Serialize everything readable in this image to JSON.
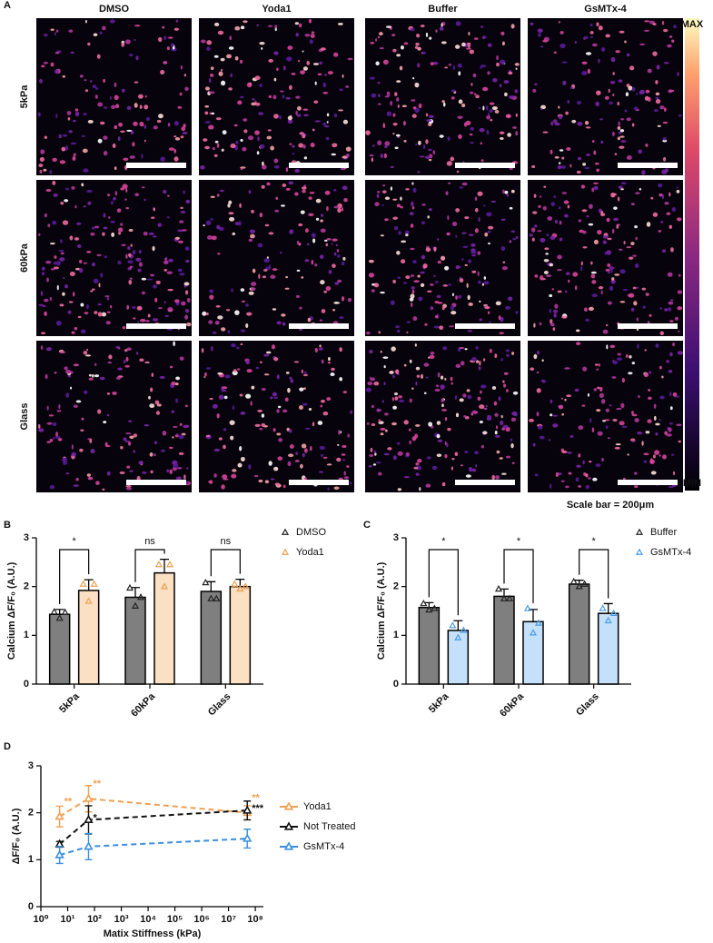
{
  "panel_labels": [
    "A",
    "B",
    "C",
    "D"
  ],
  "microscopy": {
    "columns": [
      "DMSO",
      "Yoda1",
      "Buffer",
      "GsMTx-4"
    ],
    "rows": [
      "5kPa",
      "60kPa",
      "Glass"
    ],
    "colorbar": {
      "max": "MAX",
      "min": "MIN"
    },
    "scale_bar": "Scale bar = 200μm"
  },
  "chart_data": [
    {
      "type": "bar",
      "ylabel": "Calcium ΔF/F₀ (A.U.)",
      "categories": [
        "5kPa",
        "60kPa",
        "Glass"
      ],
      "ylim": [
        0,
        3
      ],
      "yticks": [
        0,
        1,
        2,
        3
      ],
      "legend": "right",
      "significance": [
        "*",
        "ns",
        "ns"
      ],
      "series": [
        {
          "name": "DMSO",
          "color": "#7f7f7f",
          "marker_color": "#222222",
          "values": [
            1.43,
            1.78,
            1.9
          ],
          "errors": [
            0.1,
            0.2,
            0.2
          ],
          "points": [
            [
              1.48,
              1.35,
              1.47
            ],
            [
              1.97,
              1.6,
              1.78
            ],
            [
              2.08,
              1.75,
              1.75
            ]
          ]
        },
        {
          "name": "Yoda1",
          "color": "#fbe0c4",
          "marker_color": "#f0a050",
          "values": [
            1.92,
            2.28,
            2.0
          ],
          "errors": [
            0.22,
            0.28,
            0.15
          ],
          "points": [
            [
              2.05,
              1.7,
              2.05
            ],
            [
              2.45,
              2.0,
              2.45
            ],
            [
              2.05,
              1.95,
              2.0
            ]
          ]
        }
      ]
    },
    {
      "type": "bar",
      "ylabel": "Calcium ΔF/F₀ (A.U.)",
      "categories": [
        "5kPa",
        "60kPa",
        "Glass"
      ],
      "ylim": [
        0,
        3
      ],
      "yticks": [
        0,
        1,
        2,
        3
      ],
      "legend": "right",
      "significance": [
        "*",
        "*",
        "*"
      ],
      "series": [
        {
          "name": "Buffer",
          "color": "#7f7f7f",
          "marker_color": "#222222",
          "values": [
            1.57,
            1.8,
            2.05
          ],
          "errors": [
            0.1,
            0.15,
            0.08
          ],
          "points": [
            [
              1.65,
              1.52,
              1.55
            ],
            [
              1.95,
              1.75,
              1.75
            ],
            [
              2.1,
              2.0,
              2.05
            ]
          ]
        },
        {
          "name": "GsMTx-4",
          "color": "#c5e0fa",
          "marker_color": "#4a9de8",
          "values": [
            1.1,
            1.28,
            1.45
          ],
          "errors": [
            0.2,
            0.25,
            0.2
          ],
          "points": [
            [
              1.2,
              0.95,
              1.1
            ],
            [
              1.55,
              1.05,
              1.25
            ],
            [
              1.55,
              1.3,
              1.45
            ]
          ]
        }
      ]
    },
    {
      "type": "line",
      "xlabel": "Matix Stiffness (kPa)",
      "ylabel": "ΔF/F₀ (A.U.)",
      "xlog": true,
      "xlim": [
        1,
        200000000
      ],
      "ylim": [
        0,
        3
      ],
      "yticks": [
        0,
        1,
        2,
        3
      ],
      "legend": "right",
      "xticks": [
        {
          "value": 1,
          "label": "10⁰"
        },
        {
          "value": 10,
          "label": "10¹"
        },
        {
          "value": 100,
          "label": "10²"
        },
        {
          "value": 1000,
          "label": "10³"
        },
        {
          "value": 10000,
          "label": "10⁴"
        },
        {
          "value": 100000,
          "label": "10⁵"
        },
        {
          "value": 1000000,
          "label": "10⁶"
        },
        {
          "value": 10000000,
          "label": "10⁷"
        },
        {
          "value": 100000000,
          "label": "10⁸"
        }
      ],
      "x": [
        5,
        60,
        50000000
      ],
      "series": [
        {
          "name": "Yoda1",
          "color": "#f0a050",
          "values": [
            1.92,
            2.3,
            2.0
          ],
          "errors": [
            0.22,
            0.28,
            0.15
          ],
          "significance": [
            "**",
            "**",
            "**"
          ]
        },
        {
          "name": "Not Treated",
          "color": "#111111",
          "values": [
            1.33,
            1.85,
            2.05
          ],
          "errors": [
            0.06,
            0.3,
            0.2
          ],
          "significance": [
            null,
            "*",
            "***"
          ]
        },
        {
          "name": "GsMTx-4",
          "color": "#3a8fe0",
          "values": [
            1.1,
            1.28,
            1.45
          ],
          "errors": [
            0.18,
            0.28,
            0.2
          ],
          "significance": [
            null,
            null,
            null
          ]
        }
      ]
    }
  ]
}
